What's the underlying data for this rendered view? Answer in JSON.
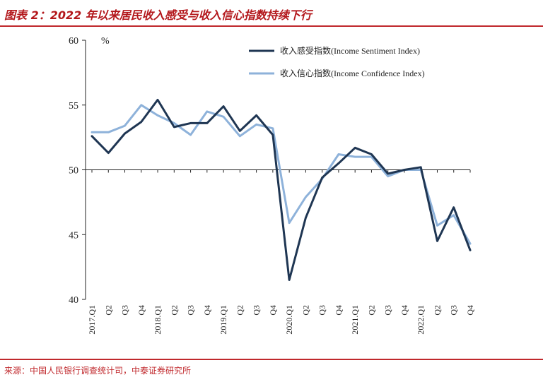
{
  "title": "图表 2：2022 年以来居民收入感受与收入信心指数持续下行",
  "source": "来源：中国人民银行调查统计司，中泰证券研究所",
  "chart_data": {
    "type": "line",
    "ylabel": "%",
    "ylim": [
      40,
      60
    ],
    "yticks": [
      "40",
      "45",
      "50",
      "55",
      "60"
    ],
    "xlabel": "",
    "x": [
      "2017.Q1",
      "Q2",
      "Q3",
      "Q4",
      "2018.Q1",
      "Q2",
      "Q3",
      "Q4",
      "2019.Q1",
      "Q2",
      "Q3",
      "Q4",
      "2020.Q1",
      "Q2",
      "Q3",
      "Q4",
      "2021.Q1",
      "Q2",
      "Q3",
      "Q4",
      "2022.Q1",
      "Q2",
      "Q3",
      "Q4"
    ],
    "grid": false,
    "legend_position": "top-right",
    "series": [
      {
        "name": "收入感受指数(Income Sentiment Index)",
        "color": "#1f3653",
        "values": [
          52.6,
          51.3,
          52.8,
          53.7,
          55.4,
          53.3,
          53.6,
          53.6,
          54.9,
          53.0,
          54.2,
          52.7,
          41.5,
          46.3,
          49.4,
          50.5,
          51.7,
          51.2,
          49.7,
          50.0,
          50.2,
          44.5,
          47.1,
          43.8
        ]
      },
      {
        "name": "收入信心指数(Income Confidence Index)",
        "color": "#8eb2da",
        "values": [
          52.9,
          52.9,
          53.4,
          55.0,
          54.2,
          53.6,
          52.7,
          54.5,
          54.1,
          52.6,
          53.5,
          53.2,
          45.9,
          47.9,
          49.3,
          51.2,
          51.0,
          51.0,
          49.5,
          50.0,
          50.0,
          45.7,
          46.5,
          44.3
        ]
      }
    ]
  }
}
